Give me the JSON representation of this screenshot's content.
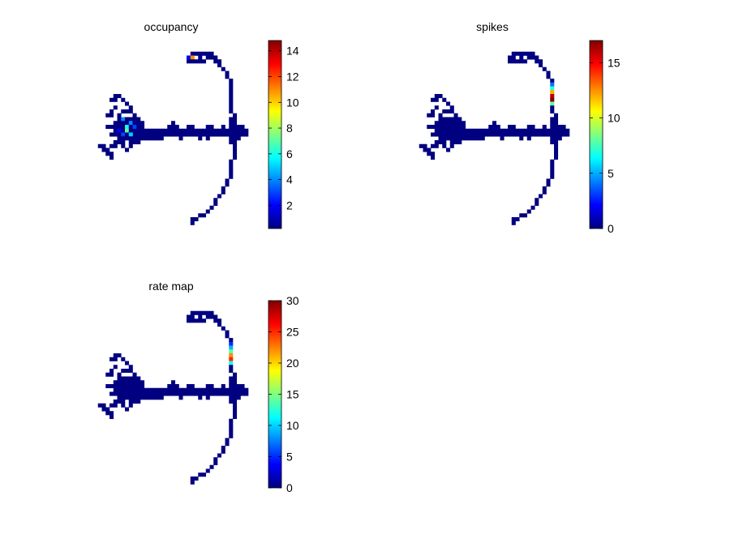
{
  "chart_data": [
    {
      "type": "heatmap",
      "title": "occupancy",
      "colormap": "jet",
      "clim": [
        0.2,
        14.8
      ],
      "colorbar_ticks": [
        2,
        4,
        6,
        8,
        10,
        12,
        14
      ],
      "colorbar_tick_labels": [
        "2",
        "4",
        "6",
        "8",
        "10",
        "12",
        "14"
      ],
      "grid_size": [
        44,
        48
      ],
      "hotspots": [
        {
          "cell": [
            8,
            20
          ],
          "value": 6
        },
        {
          "cell": [
            8,
            21
          ],
          "value": 7
        },
        {
          "cell": [
            9,
            22
          ],
          "value": 5
        },
        {
          "cell": [
            9,
            19
          ],
          "value": 4
        },
        {
          "cell": [
            7,
            18
          ],
          "value": 4
        },
        {
          "cell": [
            7,
            22
          ],
          "value": 3
        },
        {
          "cell": [
            10,
            20
          ],
          "value": 3
        },
        {
          "cell": [
            6,
            21
          ],
          "value": 2
        },
        {
          "cell": [
            25,
            2
          ],
          "value": 11
        },
        {
          "cell": [
            24,
            2
          ],
          "value": 2
        }
      ]
    },
    {
      "type": "heatmap",
      "title": "spikes",
      "colormap": "jet",
      "clim": [
        0,
        17
      ],
      "colorbar_ticks": [
        0,
        5,
        10,
        15
      ],
      "colorbar_tick_labels": [
        "0",
        "5",
        "10",
        "15"
      ],
      "grid_size": [
        44,
        48
      ],
      "hotspots": [
        {
          "cell": [
            35,
            12
          ],
          "value": 16
        },
        {
          "cell": [
            35,
            13
          ],
          "value": 17
        },
        {
          "cell": [
            35,
            11
          ],
          "value": 12
        },
        {
          "cell": [
            35,
            10
          ],
          "value": 7
        },
        {
          "cell": [
            35,
            14
          ],
          "value": 8
        },
        {
          "cell": [
            35,
            9
          ],
          "value": 4
        },
        {
          "cell": [
            34,
            11
          ],
          "value": 3
        }
      ]
    },
    {
      "type": "heatmap",
      "title": "rate map",
      "colormap": "jet",
      "clim": [
        0,
        30
      ],
      "colorbar_ticks": [
        0,
        5,
        10,
        15,
        20,
        25,
        30
      ],
      "colorbar_tick_labels": [
        "0",
        "5",
        "10",
        "15",
        "20",
        "25",
        "30"
      ],
      "grid_size": [
        44,
        48
      ],
      "hotspots": [
        {
          "cell": [
            35,
            12
          ],
          "value": 22
        },
        {
          "cell": [
            35,
            13
          ],
          "value": 25
        },
        {
          "cell": [
            35,
            11
          ],
          "value": 14
        },
        {
          "cell": [
            35,
            10
          ],
          "value": 9
        },
        {
          "cell": [
            35,
            14
          ],
          "value": 12
        },
        {
          "cell": [
            34,
            12
          ],
          "value": 6
        },
        {
          "cell": [
            35,
            9
          ],
          "value": 5
        }
      ]
    }
  ]
}
